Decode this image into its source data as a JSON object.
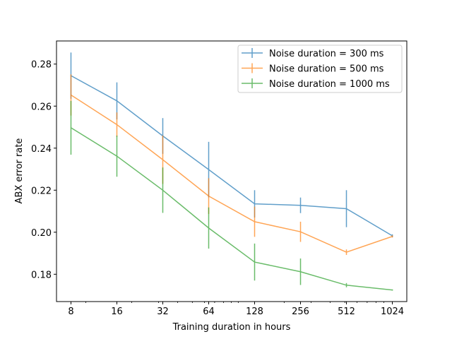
{
  "chart_data": {
    "type": "line",
    "xscale": "log2",
    "x": [
      8,
      16,
      32,
      64,
      128,
      256,
      512,
      1024
    ],
    "xticks": [
      "8",
      "16",
      "32",
      "64",
      "128",
      "256",
      "512",
      "1024"
    ],
    "yticks": [
      "0.18",
      "0.20",
      "0.22",
      "0.24",
      "0.26",
      "0.28"
    ],
    "ylim": [
      0.167,
      0.291
    ],
    "xlabel": "Training duration in hours",
    "ylabel": "ABX error rate",
    "legend_position": "top-right",
    "grid": false,
    "series": [
      {
        "name": "Noise duration = 300 ms",
        "color": "#1f77b4",
        "values": [
          0.2745,
          0.2625,
          0.2458,
          0.2298,
          0.2135,
          0.2128,
          0.2112,
          0.1983
        ],
        "errors": [
          0.011,
          0.0088,
          0.0085,
          0.0132,
          0.0065,
          0.0037,
          0.0088,
          0.0007
        ]
      },
      {
        "name": "Noise duration = 500 ms",
        "color": "#ff7f0e",
        "values": [
          0.2653,
          0.2512,
          0.2345,
          0.2172,
          0.205,
          0.2002,
          0.1905,
          0.198
        ],
        "errors": [
          0.0098,
          0.0058,
          0.0115,
          0.0085,
          0.0072,
          0.0048,
          0.0013,
          0.0005
        ]
      },
      {
        "name": "Noise duration = 1000 ms",
        "color": "#2ca02c",
        "values": [
          0.2497,
          0.2362,
          0.22,
          0.202,
          0.1858,
          0.1812,
          0.1748,
          0.1725
        ],
        "errors": [
          0.0128,
          0.0098,
          0.0108,
          0.0098,
          0.0088,
          0.0063,
          0.001,
          0.0003
        ]
      }
    ]
  }
}
